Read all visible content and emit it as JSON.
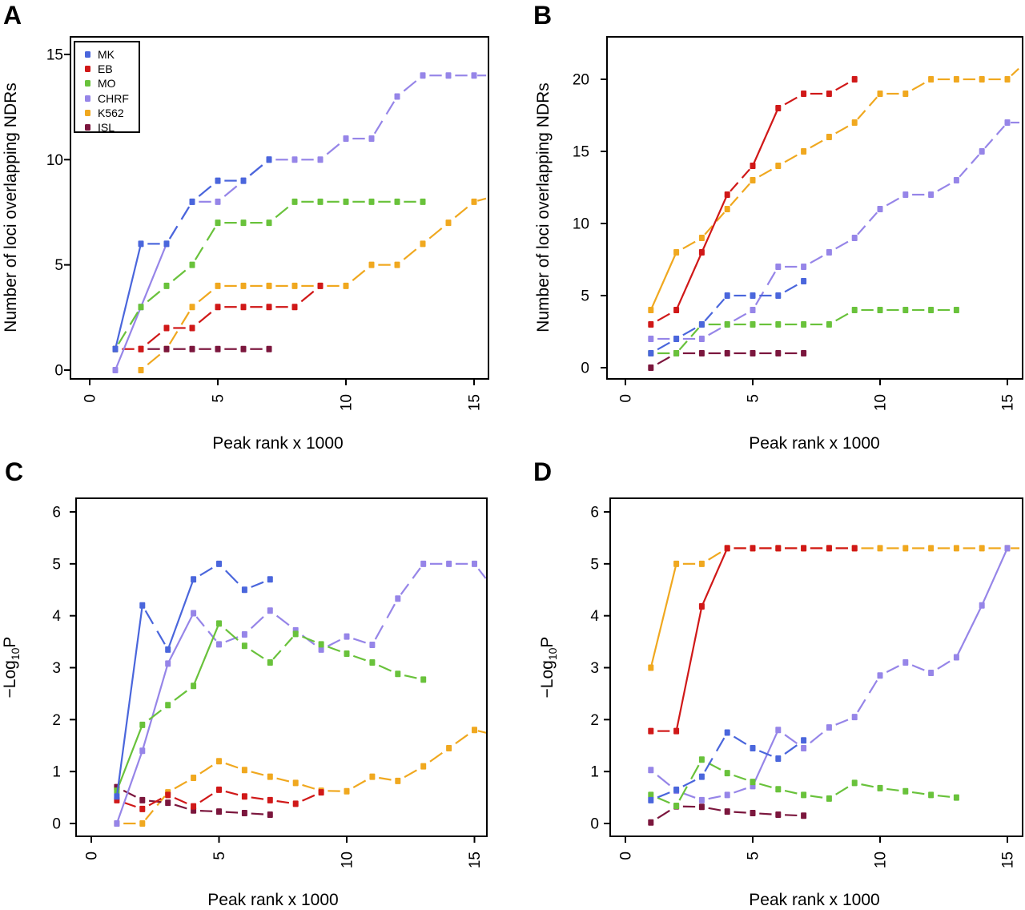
{
  "legend": {
    "entries": [
      {
        "label": "MK",
        "color": "#4a66dc"
      },
      {
        "label": "EB",
        "color": "#d01818"
      },
      {
        "label": "MO",
        "color": "#69c23b"
      },
      {
        "label": "CHRF",
        "color": "#9685e8"
      },
      {
        "label": "K562",
        "color": "#f0a81f"
      },
      {
        "label": "ISL",
        "color": "#7b163d"
      }
    ]
  },
  "chart_data": [
    {
      "type": "line",
      "panel": "A",
      "xlabel": "Peak rank x 1000",
      "ylabel": "Number of loci overlapping NDRs",
      "xticks": [
        0,
        5,
        10,
        15
      ],
      "yticks": [
        0,
        5,
        10,
        15
      ],
      "xlim": [
        0,
        15.6
      ],
      "ylim": [
        0,
        15.8
      ],
      "legend_position": "top-left",
      "series": [
        {
          "name": "K562",
          "x": [
            2,
            3,
            4,
            5,
            6,
            7,
            8,
            9,
            10,
            11,
            12,
            13,
            14,
            15
          ],
          "y": [
            0,
            1,
            3,
            4,
            4,
            4,
            4,
            4,
            4,
            5,
            5,
            6,
            7,
            8
          ],
          "ext": [
            15.6,
            8.2
          ]
        },
        {
          "name": "ISL",
          "x": [
            2,
            3,
            4,
            5,
            6,
            7
          ],
          "y": [
            1,
            1,
            1,
            1,
            1,
            1
          ]
        },
        {
          "name": "EB",
          "x": [
            1,
            2,
            3,
            4,
            5,
            6,
            7,
            8,
            9
          ],
          "y": [
            1,
            1,
            2,
            2,
            3,
            3,
            3,
            3,
            4
          ]
        },
        {
          "name": "CHRF",
          "x": [
            1,
            2,
            3,
            4,
            5,
            6,
            7,
            8,
            9,
            10,
            11,
            12,
            13,
            14,
            15
          ],
          "y": [
            0,
            3,
            6,
            8,
            8,
            9,
            10,
            10,
            10,
            11,
            11,
            13,
            14,
            14,
            14
          ],
          "ext": [
            15.6,
            14
          ]
        },
        {
          "name": "MO",
          "x": [
            1,
            2,
            3,
            4,
            5,
            6,
            7,
            8,
            9,
            10,
            11,
            12,
            13
          ],
          "y": [
            1,
            3,
            4,
            5,
            7,
            7,
            7,
            8,
            8,
            8,
            8,
            8,
            8
          ]
        },
        {
          "name": "MK",
          "x": [
            1,
            2,
            3,
            4,
            5,
            6,
            7
          ],
          "y": [
            1,
            6,
            6,
            8,
            9,
            9,
            10
          ]
        }
      ]
    },
    {
      "type": "line",
      "panel": "B",
      "xlabel": "Peak rank x 1000",
      "ylabel": "Number of loci overlapping NDRs",
      "xticks": [
        0,
        5,
        10,
        15
      ],
      "yticks": [
        0,
        5,
        10,
        15,
        20
      ],
      "xlim": [
        0,
        15.6
      ],
      "ylim": [
        0,
        22.9
      ],
      "series": [
        {
          "name": "K562",
          "x": [
            1,
            2,
            3,
            4,
            5,
            6,
            7,
            8,
            9,
            10,
            11,
            12,
            13,
            14,
            15
          ],
          "y": [
            4,
            8,
            9,
            11,
            13,
            14,
            15,
            16,
            17,
            19,
            19,
            20,
            20,
            20,
            20
          ],
          "ext": [
            15.6,
            21
          ]
        },
        {
          "name": "ISL",
          "x": [
            1,
            2,
            3,
            4,
            5,
            6,
            7
          ],
          "y": [
            0,
            1,
            1,
            1,
            1,
            1,
            1
          ]
        },
        {
          "name": "EB",
          "x": [
            1,
            2,
            3,
            4,
            5,
            6,
            7,
            8,
            9
          ],
          "y": [
            3,
            4,
            8,
            12,
            14,
            18,
            19,
            19,
            20
          ]
        },
        {
          "name": "CHRF",
          "x": [
            1,
            2,
            3,
            4,
            5,
            6,
            7,
            8,
            9,
            10,
            11,
            12,
            13,
            14,
            15
          ],
          "y": [
            2,
            2,
            2,
            3,
            4,
            7,
            7,
            8,
            9,
            11,
            12,
            12,
            13,
            15,
            17
          ],
          "ext": [
            15.6,
            17
          ]
        },
        {
          "name": "MO",
          "x": [
            1,
            2,
            3,
            4,
            5,
            6,
            7,
            8,
            9,
            10,
            11,
            12,
            13
          ],
          "y": [
            1,
            1,
            3,
            3,
            3,
            3,
            3,
            3,
            4,
            4,
            4,
            4,
            4
          ]
        },
        {
          "name": "MK",
          "x": [
            1,
            2,
            3,
            4,
            5,
            6,
            7
          ],
          "y": [
            1,
            2,
            3,
            5,
            5,
            5,
            6
          ]
        }
      ]
    },
    {
      "type": "line",
      "panel": "C",
      "xlabel": "Peak rank x 1000",
      "ylabel_parts": {
        "pre": "−Log",
        "sub": "10",
        "post": "P"
      },
      "xticks": [
        0,
        5,
        10,
        15
      ],
      "yticks": [
        0,
        1,
        2,
        3,
        4,
        5,
        6
      ],
      "xlim": [
        0,
        15.6
      ],
      "ylim": [
        0,
        6.28
      ],
      "series": [
        {
          "name": "K562",
          "x": [
            1,
            2,
            3,
            4,
            5,
            6,
            7,
            8,
            9,
            10,
            11,
            12,
            13,
            14,
            15
          ],
          "y": [
            0,
            0,
            0.6,
            0.88,
            1.2,
            1.03,
            0.9,
            0.78,
            0.63,
            0.62,
            0.9,
            0.82,
            1.1,
            1.45,
            1.8
          ],
          "ext": [
            15.6,
            1.73
          ]
        },
        {
          "name": "ISL",
          "x": [
            1,
            2,
            3,
            4,
            5,
            6,
            7
          ],
          "y": [
            0.7,
            0.45,
            0.4,
            0.25,
            0.23,
            0.2,
            0.17
          ]
        },
        {
          "name": "EB",
          "x": [
            1,
            2,
            3,
            4,
            5,
            6,
            7,
            8,
            9
          ],
          "y": [
            0.45,
            0.28,
            0.55,
            0.33,
            0.65,
            0.52,
            0.45,
            0.38,
            0.6
          ]
        },
        {
          "name": "CHRF",
          "x": [
            1,
            2,
            3,
            4,
            5,
            6,
            7,
            8,
            9,
            10,
            11,
            12,
            13,
            14,
            15
          ],
          "y": [
            0,
            1.4,
            3.08,
            4.05,
            3.45,
            3.64,
            4.1,
            3.72,
            3.35,
            3.6,
            3.44,
            4.33,
            5.0,
            5.0,
            5.0
          ],
          "ext": [
            15.6,
            4.62
          ]
        },
        {
          "name": "MO",
          "x": [
            1,
            2,
            3,
            4,
            5,
            6,
            7,
            8,
            9,
            10,
            11,
            12,
            13
          ],
          "y": [
            0.63,
            1.9,
            2.28,
            2.65,
            3.85,
            3.42,
            3.1,
            3.65,
            3.45,
            3.27,
            3.1,
            2.88,
            2.77
          ]
        },
        {
          "name": "MK",
          "x": [
            1,
            2,
            3,
            4,
            5,
            6,
            7
          ],
          "y": [
            0.52,
            4.2,
            3.35,
            4.7,
            5.0,
            4.5,
            4.7
          ]
        }
      ]
    },
    {
      "type": "line",
      "panel": "D",
      "xlabel": "Peak rank x 1000",
      "ylabel_parts": {
        "pre": "−Log",
        "sub": "10",
        "post": "P"
      },
      "xticks": [
        0,
        5,
        10,
        15
      ],
      "yticks": [
        0,
        1,
        2,
        3,
        4,
        5,
        6
      ],
      "xlim": [
        0,
        15.6
      ],
      "ylim": [
        0,
        6.28
      ],
      "series": [
        {
          "name": "K562",
          "x": [
            1,
            2,
            3,
            4,
            5,
            6,
            7,
            8,
            9,
            10,
            11,
            12,
            13,
            14,
            15
          ],
          "y": [
            3,
            5,
            5,
            5.3,
            5.3,
            5.3,
            5.3,
            5.3,
            5.3,
            5.3,
            5.3,
            5.3,
            5.3,
            5.3,
            5.3
          ],
          "ext": [
            15.6,
            5.3
          ]
        },
        {
          "name": "ISL",
          "x": [
            1,
            2,
            3,
            4,
            5,
            6,
            7
          ],
          "y": [
            0.02,
            0.33,
            0.32,
            0.23,
            0.2,
            0.17,
            0.15
          ]
        },
        {
          "name": "EB",
          "x": [
            1,
            2,
            3,
            4,
            5,
            6,
            7,
            8,
            9
          ],
          "y": [
            1.78,
            1.78,
            4.18,
            5.3,
            5.3,
            5.3,
            5.3,
            5.3,
            5.3
          ]
        },
        {
          "name": "CHRF",
          "x": [
            1,
            2,
            3,
            4,
            5,
            6,
            7,
            8,
            9,
            10,
            11,
            12,
            13,
            14,
            15
          ],
          "y": [
            1.03,
            0.63,
            0.45,
            0.55,
            0.72,
            1.8,
            1.45,
            1.85,
            2.05,
            2.85,
            3.1,
            2.9,
            3.2,
            4.2,
            5.3
          ]
        },
        {
          "name": "MO",
          "x": [
            1,
            2,
            3,
            4,
            5,
            6,
            7,
            8,
            9,
            10,
            11,
            12,
            13
          ],
          "y": [
            0.55,
            0.34,
            1.23,
            0.97,
            0.8,
            0.66,
            0.55,
            0.48,
            0.78,
            0.68,
            0.62,
            0.55,
            0.5
          ]
        },
        {
          "name": "MK",
          "x": [
            1,
            2,
            3,
            4,
            5,
            6,
            7
          ],
          "y": [
            0.45,
            0.65,
            0.9,
            1.75,
            1.45,
            1.25,
            1.6
          ]
        }
      ]
    }
  ]
}
